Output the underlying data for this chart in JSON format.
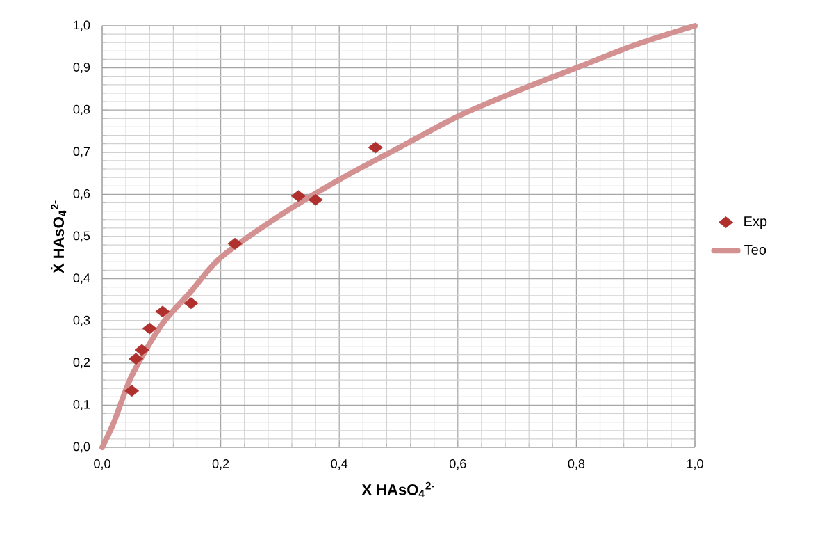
{
  "chart_data": {
    "type": "scatter",
    "xlabel": "X HAsO$_{4}$$^{2-}$",
    "ylabel": "Ẋ HAsO$_{4}$$^{2-}$",
    "xlim": [
      0,
      1
    ],
    "ylim": [
      0,
      1
    ],
    "xticks": [
      {
        "value": 0,
        "label": "0,0"
      },
      {
        "value": 0.2,
        "label": "0,2"
      },
      {
        "value": 0.4,
        "label": "0,4"
      },
      {
        "value": 0.6,
        "label": "0,6"
      },
      {
        "value": 0.8,
        "label": "0,8"
      },
      {
        "value": 1,
        "label": "1,0"
      }
    ],
    "yticks": [
      {
        "value": 0,
        "label": "0,0"
      },
      {
        "value": 0.1,
        "label": "0,1"
      },
      {
        "value": 0.2,
        "label": "0,2"
      },
      {
        "value": 0.3,
        "label": "0,3"
      },
      {
        "value": 0.4,
        "label": "0,4"
      },
      {
        "value": 0.5,
        "label": "0,5"
      },
      {
        "value": 0.6,
        "label": "0,6"
      },
      {
        "value": 0.7,
        "label": "0,7"
      },
      {
        "value": 0.8,
        "label": "0,8"
      },
      {
        "value": 0.9,
        "label": "0,9"
      },
      {
        "value": 1,
        "label": "1,0"
      }
    ],
    "grid": true,
    "legend": "right",
    "series": [
      {
        "name": "Exp",
        "marker": "diamond",
        "color": "#b0302e",
        "x": [
          0.05,
          0.057,
          0.067,
          0.08,
          0.102,
          0.15,
          0.224,
          0.331,
          0.36,
          0.461
        ],
        "values": [
          0.134,
          0.21,
          0.231,
          0.282,
          0.322,
          0.342,
          0.483,
          0.596,
          0.587,
          0.711
        ]
      },
      {
        "name": "Teo",
        "type": "line",
        "marker": "none",
        "color": "#d49191",
        "x": [
          0,
          0.02,
          0.05,
          0.1,
          0.15,
          0.2,
          0.3,
          0.4,
          0.5,
          0.6,
          0.7,
          0.8,
          0.9,
          1.0
        ],
        "values": [
          0,
          0.06,
          0.17,
          0.29,
          0.37,
          0.45,
          0.55,
          0.635,
          0.71,
          0.785,
          0.845,
          0.9,
          0.955,
          1.0
        ]
      }
    ]
  }
}
